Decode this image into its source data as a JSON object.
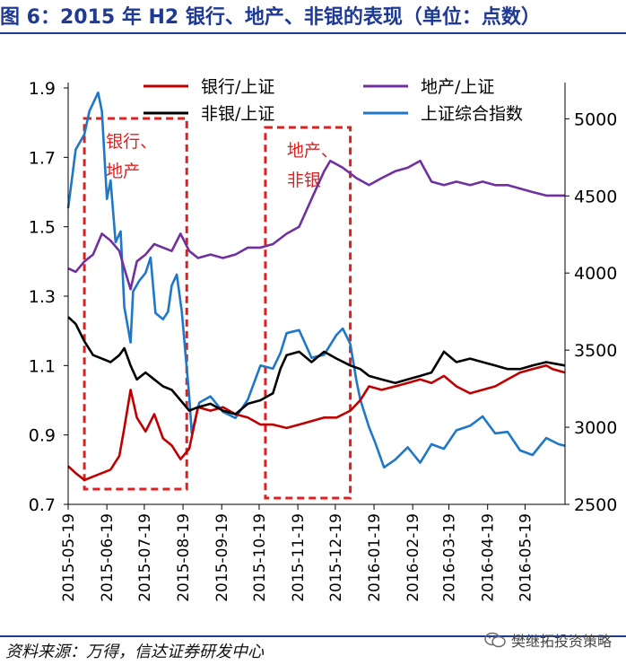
{
  "title": "图 6：2015 年 H2 银行、地产、非银的表现（单位：点数）",
  "source": "资料来源：万得，信达证券研发中心",
  "watermark": {
    "icon": "wechat-icon",
    "text": "樊继拓投资策略"
  },
  "colors": {
    "title": "#1f3a93",
    "bank": "#c00000",
    "realestate": "#7030a0",
    "nonbank": "#000000",
    "index": "#1f77c8",
    "highlight_box": "#e02020"
  },
  "chart_data": {
    "type": "line",
    "title": "",
    "xlabel": "",
    "ylabel": "",
    "left_axis": {
      "ylim": [
        0.7,
        1.9
      ],
      "ticks": [
        "0.7",
        "0.9",
        "1.1",
        "1.3",
        "1.5",
        "1.7",
        "1.9"
      ]
    },
    "right_axis": {
      "ylim": [
        2500,
        5200
      ],
      "ticks": [
        "2500",
        "3000",
        "3500",
        "4000",
        "4500",
        "5000"
      ]
    },
    "x_ticks": [
      "2015-05-19",
      "2015-06-19",
      "2015-07-19",
      "2015-08-19",
      "2015-09-19",
      "2015-10-19",
      "2015-11-19",
      "2015-12-19",
      "2016-01-19",
      "2016-02-19",
      "2016-03-19",
      "2016-04-19",
      "2016-05-19"
    ],
    "legend": {
      "placement": "top",
      "entries": [
        "银行/上证",
        "地产/上证",
        "非银/上证",
        "上证综合指数"
      ]
    },
    "series": [
      {
        "name": "银行/上证",
        "axis": "left",
        "points": [
          [
            "2015-05-19",
            0.81
          ],
          [
            "2015-05-25",
            0.79
          ],
          [
            "2015-06-01",
            0.77
          ],
          [
            "2015-06-08",
            0.78
          ],
          [
            "2015-06-15",
            0.79
          ],
          [
            "2015-06-22",
            0.8
          ],
          [
            "2015-06-29",
            0.84
          ],
          [
            "2015-07-03",
            0.92
          ],
          [
            "2015-07-08",
            1.03
          ],
          [
            "2015-07-13",
            0.95
          ],
          [
            "2015-07-20",
            0.91
          ],
          [
            "2015-07-27",
            0.96
          ],
          [
            "2015-08-03",
            0.89
          ],
          [
            "2015-08-10",
            0.87
          ],
          [
            "2015-08-17",
            0.83
          ],
          [
            "2015-08-24",
            0.86
          ],
          [
            "2015-08-31",
            0.98
          ],
          [
            "2015-09-10",
            0.97
          ],
          [
            "2015-09-20",
            0.98
          ],
          [
            "2015-09-30",
            0.96
          ],
          [
            "2015-10-10",
            0.95
          ],
          [
            "2015-10-20",
            0.93
          ],
          [
            "2015-10-30",
            0.93
          ],
          [
            "2015-11-10",
            0.92
          ],
          [
            "2015-11-20",
            0.93
          ],
          [
            "2015-11-30",
            0.94
          ],
          [
            "2015-12-10",
            0.95
          ],
          [
            "2015-12-20",
            0.95
          ],
          [
            "2015-12-31",
            0.97
          ],
          [
            "2016-01-08",
            1.0
          ],
          [
            "2016-01-15",
            1.04
          ],
          [
            "2016-01-25",
            1.03
          ],
          [
            "2016-02-05",
            1.04
          ],
          [
            "2016-02-15",
            1.05
          ],
          [
            "2016-02-25",
            1.06
          ],
          [
            "2016-03-05",
            1.05
          ],
          [
            "2016-03-15",
            1.07
          ],
          [
            "2016-03-25",
            1.04
          ],
          [
            "2016-04-05",
            1.02
          ],
          [
            "2016-04-15",
            1.03
          ],
          [
            "2016-04-25",
            1.04
          ],
          [
            "2016-05-05",
            1.06
          ],
          [
            "2016-05-15",
            1.08
          ],
          [
            "2016-05-25",
            1.09
          ],
          [
            "2016-06-05",
            1.1
          ],
          [
            "2016-06-10",
            1.09
          ],
          [
            "2016-06-20",
            1.08
          ]
        ]
      },
      {
        "name": "地产/上证",
        "axis": "left",
        "points": [
          [
            "2015-05-19",
            1.38
          ],
          [
            "2015-05-25",
            1.37
          ],
          [
            "2015-06-01",
            1.4
          ],
          [
            "2015-06-08",
            1.42
          ],
          [
            "2015-06-15",
            1.48
          ],
          [
            "2015-06-22",
            1.46
          ],
          [
            "2015-06-29",
            1.43
          ],
          [
            "2015-07-03",
            1.38
          ],
          [
            "2015-07-08",
            1.32
          ],
          [
            "2015-07-13",
            1.4
          ],
          [
            "2015-07-20",
            1.42
          ],
          [
            "2015-07-27",
            1.45
          ],
          [
            "2015-08-03",
            1.44
          ],
          [
            "2015-08-10",
            1.43
          ],
          [
            "2015-08-17",
            1.48
          ],
          [
            "2015-08-24",
            1.43
          ],
          [
            "2015-08-31",
            1.41
          ],
          [
            "2015-09-10",
            1.42
          ],
          [
            "2015-09-20",
            1.41
          ],
          [
            "2015-09-30",
            1.42
          ],
          [
            "2015-10-10",
            1.44
          ],
          [
            "2015-10-20",
            1.44
          ],
          [
            "2015-10-30",
            1.45
          ],
          [
            "2015-11-10",
            1.48
          ],
          [
            "2015-11-20",
            1.5
          ],
          [
            "2015-11-30",
            1.58
          ],
          [
            "2015-12-10",
            1.66
          ],
          [
            "2015-12-15",
            1.69
          ],
          [
            "2015-12-25",
            1.67
          ],
          [
            "2016-01-05",
            1.64
          ],
          [
            "2016-01-15",
            1.62
          ],
          [
            "2016-01-25",
            1.64
          ],
          [
            "2016-02-05",
            1.66
          ],
          [
            "2016-02-15",
            1.67
          ],
          [
            "2016-02-25",
            1.69
          ],
          [
            "2016-03-05",
            1.63
          ],
          [
            "2016-03-15",
            1.62
          ],
          [
            "2016-03-25",
            1.63
          ],
          [
            "2016-04-05",
            1.62
          ],
          [
            "2016-04-15",
            1.63
          ],
          [
            "2016-04-25",
            1.62
          ],
          [
            "2016-05-05",
            1.62
          ],
          [
            "2016-05-15",
            1.61
          ],
          [
            "2016-05-25",
            1.6
          ],
          [
            "2016-06-05",
            1.59
          ],
          [
            "2016-06-20",
            1.59
          ]
        ]
      },
      {
        "name": "非银/上证",
        "axis": "left",
        "points": [
          [
            "2015-05-19",
            1.24
          ],
          [
            "2015-05-25",
            1.22
          ],
          [
            "2015-06-01",
            1.17
          ],
          [
            "2015-06-08",
            1.13
          ],
          [
            "2015-06-15",
            1.12
          ],
          [
            "2015-06-22",
            1.11
          ],
          [
            "2015-06-29",
            1.13
          ],
          [
            "2015-07-03",
            1.15
          ],
          [
            "2015-07-08",
            1.1
          ],
          [
            "2015-07-13",
            1.06
          ],
          [
            "2015-07-20",
            1.08
          ],
          [
            "2015-07-27",
            1.06
          ],
          [
            "2015-08-03",
            1.04
          ],
          [
            "2015-08-10",
            1.03
          ],
          [
            "2015-08-17",
            1.0
          ],
          [
            "2015-08-24",
            0.97
          ],
          [
            "2015-08-31",
            0.98
          ],
          [
            "2015-09-10",
            0.99
          ],
          [
            "2015-09-20",
            0.97
          ],
          [
            "2015-09-30",
            0.96
          ],
          [
            "2015-10-10",
            0.99
          ],
          [
            "2015-10-20",
            1.0
          ],
          [
            "2015-10-30",
            1.02
          ],
          [
            "2015-11-05",
            1.09
          ],
          [
            "2015-11-10",
            1.13
          ],
          [
            "2015-11-20",
            1.14
          ],
          [
            "2015-11-30",
            1.11
          ],
          [
            "2015-12-10",
            1.14
          ],
          [
            "2015-12-20",
            1.12
          ],
          [
            "2015-12-31",
            1.1
          ],
          [
            "2016-01-08",
            1.09
          ],
          [
            "2016-01-15",
            1.07
          ],
          [
            "2016-01-25",
            1.06
          ],
          [
            "2016-02-05",
            1.05
          ],
          [
            "2016-02-15",
            1.06
          ],
          [
            "2016-02-25",
            1.07
          ],
          [
            "2016-03-05",
            1.08
          ],
          [
            "2016-03-15",
            1.14
          ],
          [
            "2016-03-25",
            1.11
          ],
          [
            "2016-04-05",
            1.12
          ],
          [
            "2016-04-15",
            1.11
          ],
          [
            "2016-04-25",
            1.1
          ],
          [
            "2016-05-05",
            1.09
          ],
          [
            "2016-05-15",
            1.09
          ],
          [
            "2016-05-25",
            1.1
          ],
          [
            "2016-06-05",
            1.11
          ],
          [
            "2016-06-20",
            1.1
          ]
        ]
      },
      {
        "name": "上证综合指数",
        "axis": "right",
        "points": [
          [
            "2015-05-19",
            4420
          ],
          [
            "2015-05-25",
            4800
          ],
          [
            "2015-06-01",
            4900
          ],
          [
            "2015-06-05",
            5050
          ],
          [
            "2015-06-12",
            5170
          ],
          [
            "2015-06-15",
            5050
          ],
          [
            "2015-06-19",
            4480
          ],
          [
            "2015-06-22",
            4600
          ],
          [
            "2015-06-26",
            4200
          ],
          [
            "2015-06-30",
            4270
          ],
          [
            "2015-07-03",
            3780
          ],
          [
            "2015-07-08",
            3550
          ],
          [
            "2015-07-10",
            3880
          ],
          [
            "2015-07-15",
            3950
          ],
          [
            "2015-07-20",
            4000
          ],
          [
            "2015-07-24",
            4100
          ],
          [
            "2015-07-28",
            3740
          ],
          [
            "2015-08-03",
            3700
          ],
          [
            "2015-08-07",
            3750
          ],
          [
            "2015-08-10",
            3920
          ],
          [
            "2015-08-14",
            3990
          ],
          [
            "2015-08-18",
            3750
          ],
          [
            "2015-08-24",
            3200
          ],
          [
            "2015-08-26",
            2960
          ],
          [
            "2015-09-01",
            3160
          ],
          [
            "2015-09-10",
            3200
          ],
          [
            "2015-09-20",
            3100
          ],
          [
            "2015-09-30",
            3060
          ],
          [
            "2015-10-10",
            3180
          ],
          [
            "2015-10-20",
            3400
          ],
          [
            "2015-10-30",
            3380
          ],
          [
            "2015-11-05",
            3480
          ],
          [
            "2015-11-10",
            3610
          ],
          [
            "2015-11-20",
            3630
          ],
          [
            "2015-11-30",
            3450
          ],
          [
            "2015-12-10",
            3470
          ],
          [
            "2015-12-20",
            3600
          ],
          [
            "2015-12-25",
            3640
          ],
          [
            "2015-12-31",
            3540
          ],
          [
            "2016-01-05",
            3300
          ],
          [
            "2016-01-08",
            3180
          ],
          [
            "2016-01-15",
            3000
          ],
          [
            "2016-01-20",
            2900
          ],
          [
            "2016-01-27",
            2740
          ],
          [
            "2016-02-05",
            2790
          ],
          [
            "2016-02-15",
            2870
          ],
          [
            "2016-02-25",
            2770
          ],
          [
            "2016-03-05",
            2890
          ],
          [
            "2016-03-15",
            2860
          ],
          [
            "2016-03-25",
            2980
          ],
          [
            "2016-04-05",
            3010
          ],
          [
            "2016-04-15",
            3070
          ],
          [
            "2016-04-25",
            2960
          ],
          [
            "2016-05-05",
            2970
          ],
          [
            "2016-05-15",
            2850
          ],
          [
            "2016-05-25",
            2820
          ],
          [
            "2016-06-05",
            2930
          ],
          [
            "2016-06-15",
            2890
          ],
          [
            "2016-06-20",
            2880
          ]
        ]
      }
    ],
    "annotations": [
      {
        "text": "银行、地产",
        "lines": [
          "银行、",
          "地产"
        ],
        "from": "2015-06-01",
        "to": "2015-08-22"
      },
      {
        "text": "地产、非银",
        "lines": [
          "地产、",
          "非银"
        ],
        "from": "2015-10-24",
        "to": "2015-12-31"
      }
    ]
  }
}
